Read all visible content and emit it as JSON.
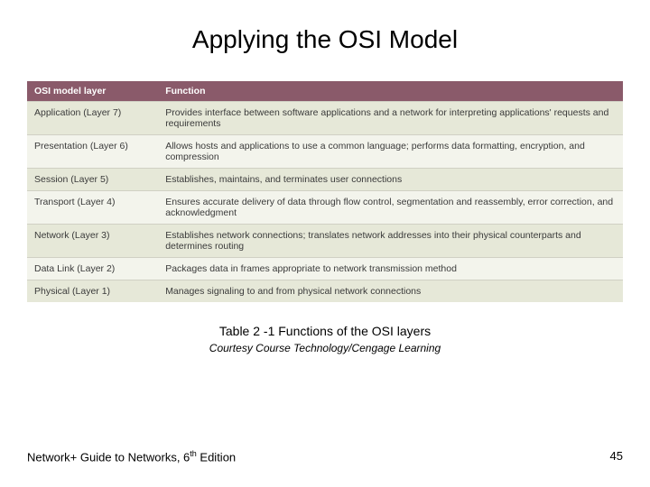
{
  "title": "Applying the OSI Model",
  "table": {
    "type": "table",
    "header_bg": "#8a5a6a",
    "header_text_color": "#ffffff",
    "row_alt_bg_a": "#e6e8d8",
    "row_alt_bg_b": "#f3f4ec",
    "row_border_color": "#d0d0c4",
    "text_color": "#3a3a3a",
    "font_size_pt": 8,
    "columns": [
      {
        "key": "layer",
        "label": "OSI model layer",
        "width_pct": 22
      },
      {
        "key": "function",
        "label": "Function",
        "width_pct": 78
      }
    ],
    "rows": [
      {
        "layer": "Application (Layer 7)",
        "function": "Provides interface between software applications and a network for interpreting applications' requests and requirements"
      },
      {
        "layer": "Presentation (Layer 6)",
        "function": "Allows hosts and applications to use a common language; performs data formatting, encryption, and compression"
      },
      {
        "layer": "Session (Layer 5)",
        "function": "Establishes, maintains, and terminates user connections"
      },
      {
        "layer": "Transport (Layer 4)",
        "function": "Ensures accurate delivery of data through flow control, segmentation and reassembly, error correction, and acknowledgment"
      },
      {
        "layer": "Network (Layer 3)",
        "function": "Establishes network connections; translates network addresses into their physical counterparts and determines routing"
      },
      {
        "layer": "Data Link (Layer 2)",
        "function": "Packages data in frames appropriate to network transmission method"
      },
      {
        "layer": "Physical (Layer 1)",
        "function": "Manages signaling to and from physical network connections"
      }
    ]
  },
  "caption": "Table 2 -1 Functions of the OSI layers",
  "credit": "Courtesy Course Technology/Cengage Learning",
  "footer_left_pre": "Network+ Guide to Networks, 6",
  "footer_left_sup": "th",
  "footer_left_post": " Edition",
  "page_number": "45"
}
